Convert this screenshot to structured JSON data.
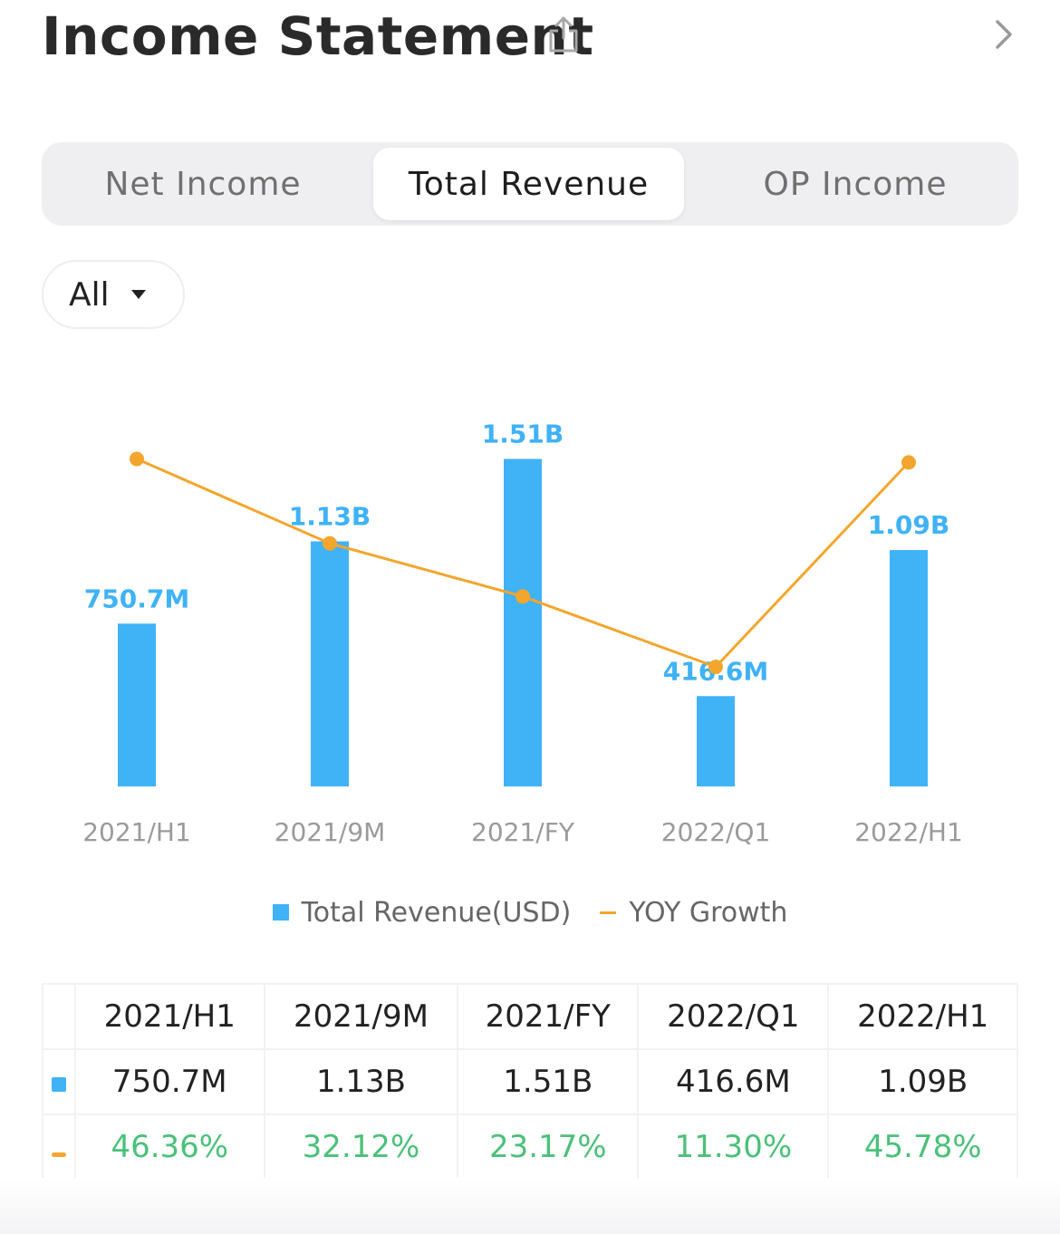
{
  "header": {
    "title": "Income Statement",
    "share_icon": "share-icon",
    "nav_icon": "chevron-right-icon"
  },
  "tabs": [
    {
      "label": "Net Income",
      "active": false
    },
    {
      "label": "Total Revenue",
      "active": true
    },
    {
      "label": "OP Income",
      "active": false
    }
  ],
  "filter": {
    "selected": "All"
  },
  "colors": {
    "bar": "#40b2f6",
    "line": "#f2a62e",
    "growth_text": "#4cc07a"
  },
  "chart_data": {
    "type": "bar+line",
    "categories": [
      "2021/H1",
      "2021/9M",
      "2021/FY",
      "2022/Q1",
      "2022/H1"
    ],
    "series": [
      {
        "name": "Total Revenue(USD)",
        "type": "bar",
        "values": [
          750.7,
          1130,
          1510,
          416.6,
          1090
        ],
        "unit": "M USD",
        "labels": [
          "750.7M",
          "1.13B",
          "1.51B",
          "416.6M",
          "1.09B"
        ]
      },
      {
        "name": "YOY Growth",
        "type": "line",
        "values": [
          46.36,
          32.12,
          23.17,
          11.3,
          45.78
        ],
        "unit": "%"
      }
    ],
    "bar_ylim": [
      0,
      1600
    ],
    "line_ylim": [
      0,
      55
    ]
  },
  "legend": {
    "bar_label": "Total Revenue(USD)",
    "line_label": "YOY Growth"
  },
  "table": {
    "headers": [
      "2021/H1",
      "2021/9M",
      "2021/FY",
      "2022/Q1",
      "2022/H1"
    ],
    "revenue": [
      "750.7M",
      "1.13B",
      "1.51B",
      "416.6M",
      "1.09B"
    ],
    "growth": [
      "46.36%",
      "32.12%",
      "23.17%",
      "11.30%",
      "45.78%"
    ]
  }
}
